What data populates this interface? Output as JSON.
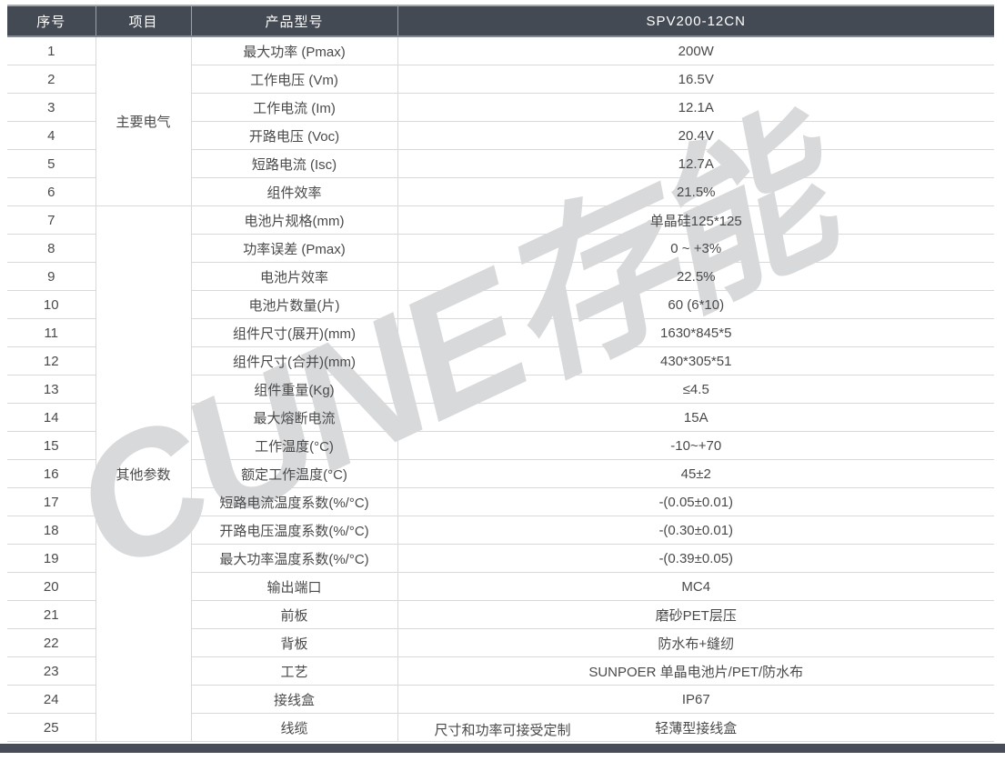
{
  "watermark": "CUNE存能",
  "table": {
    "columns": [
      "序号",
      "项目",
      "产品型号",
      "SPV200-12CN"
    ],
    "groups": [
      {
        "label": "主要电气",
        "rows": [
          {
            "no": "1",
            "param": "最大功率 (Pmax)",
            "value": "200W"
          },
          {
            "no": "2",
            "param": "工作电压 (Vm)",
            "value": "16.5V"
          },
          {
            "no": "3",
            "param": "工作电流 (Im)",
            "value": "12.1A"
          },
          {
            "no": "4",
            "param": "开路电压 (Voc)",
            "value": "20.4V"
          },
          {
            "no": "5",
            "param": "短路电流 (Isc)",
            "value": "12.7A"
          },
          {
            "no": "6",
            "param": "组件效率",
            "value": "21.5%"
          }
        ]
      },
      {
        "label": "其他参数",
        "rows": [
          {
            "no": "7",
            "param": "电池片规格(mm)",
            "value": "单晶硅125*125"
          },
          {
            "no": "8",
            "param": "功率误差 (Pmax)",
            "value": "0 ~ +3%"
          },
          {
            "no": "9",
            "param": "电池片效率",
            "value": "22.5%"
          },
          {
            "no": "10",
            "param": "电池片数量(片)",
            "value": "60 (6*10)"
          },
          {
            "no": "11",
            "param": "组件尺寸(展开)(mm)",
            "value": "1630*845*5"
          },
          {
            "no": "12",
            "param": "组件尺寸(合并)(mm)",
            "value": "430*305*51"
          },
          {
            "no": "13",
            "param": "组件重量(Kg)",
            "value": "≤4.5"
          },
          {
            "no": "14",
            "param": "最大熔断电流",
            "value": "15A"
          },
          {
            "no": "15",
            "param": "工作温度(°C)",
            "value": "-10~+70"
          },
          {
            "no": "16",
            "param": "额定工作温度(°C)",
            "value": "45±2"
          },
          {
            "no": "17",
            "param": "短路电流温度系数(%/°C)",
            "value": "-(0.05±0.01)"
          },
          {
            "no": "18",
            "param": "开路电压温度系数(%/°C)",
            "value": "-(0.30±0.01)"
          },
          {
            "no": "19",
            "param": "最大功率温度系数(%/°C)",
            "value": "-(0.39±0.05)"
          },
          {
            "no": "20",
            "param": "输出端口",
            "value": "MC4"
          },
          {
            "no": "21",
            "param": "前板",
            "value": "磨砂PET层压"
          },
          {
            "no": "22",
            "param": "背板",
            "value": "防水布+缝纫"
          },
          {
            "no": "23",
            "param": "工艺",
            "value": "SUNPOER 单晶电池片/PET/防水布"
          },
          {
            "no": "24",
            "param": "接线盒",
            "value": "IP67"
          },
          {
            "no": "25",
            "param": "线缆",
            "value": "轻薄型接线盒"
          }
        ]
      }
    ],
    "footnote": "尺寸和功率可接受定制"
  },
  "colors": {
    "header_bg": "#444a54",
    "header_text": "#ffffff",
    "body_text": "#4a4a4a",
    "row_border": "#d9d9d9",
    "bottom_bar": "#474c58",
    "watermark": "#d8d9db"
  }
}
